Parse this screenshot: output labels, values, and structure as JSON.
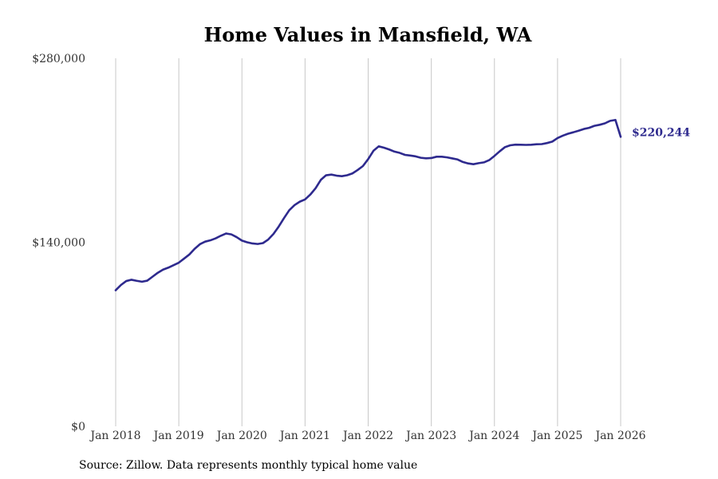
{
  "chart_data": {
    "type": "line",
    "title": "Home Values in Mansfield, WA",
    "source": "Source: Zillow. Data represents monthly typical home value",
    "xlabel": "",
    "ylabel": "",
    "ylim": [
      0,
      280000
    ],
    "y_ticks": [
      {
        "value": 0,
        "label": "$0"
      },
      {
        "value": 140000,
        "label": "$140,000"
      },
      {
        "value": 280000,
        "label": "$280,000"
      }
    ],
    "x_ticks": [
      {
        "month_index": 0,
        "label": "Jan 2018"
      },
      {
        "month_index": 12,
        "label": "Jan 2019"
      },
      {
        "month_index": 24,
        "label": "Jan 2020"
      },
      {
        "month_index": 36,
        "label": "Jan 2021"
      },
      {
        "month_index": 48,
        "label": "Jan 2022"
      },
      {
        "month_index": 60,
        "label": "Jan 2023"
      },
      {
        "month_index": 72,
        "label": "Jan 2024"
      },
      {
        "month_index": 84,
        "label": "Jan 2025"
      },
      {
        "month_index": 96,
        "label": "Jan 2026"
      }
    ],
    "grid": "vertical",
    "series": [
      {
        "name": "Typical home value",
        "color": "#2e2a8e",
        "start": "Jan 2018",
        "x": [
          0,
          1,
          2,
          3,
          4,
          5,
          6,
          7,
          8,
          9,
          10,
          11,
          12,
          13,
          14,
          15,
          16,
          17,
          18,
          19,
          20,
          21,
          22,
          23,
          24,
          25,
          26,
          27,
          28,
          29,
          30,
          31,
          32,
          33,
          34,
          35,
          36,
          37,
          38,
          39,
          40,
          41,
          42,
          43,
          44,
          45,
          46,
          47,
          48,
          49,
          50,
          51,
          52,
          53,
          54,
          55,
          56,
          57,
          58,
          59,
          60,
          61,
          62,
          63,
          64,
          65,
          66,
          67,
          68,
          69,
          70,
          71,
          72,
          73,
          74,
          75,
          76,
          77,
          78,
          79,
          80,
          81,
          82,
          83,
          84,
          85,
          86,
          87,
          88,
          89,
          90,
          91,
          92,
          93,
          94,
          95,
          96
        ],
        "values": [
          103500,
          107500,
          110500,
          111500,
          110700,
          110000,
          110800,
          113800,
          116800,
          119200,
          120700,
          122600,
          124500,
          127600,
          130700,
          135000,
          138500,
          140500,
          141500,
          143000,
          145000,
          146700,
          146000,
          143900,
          141300,
          140000,
          139100,
          138700,
          139400,
          142100,
          146400,
          152000,
          158400,
          164400,
          168300,
          170900,
          172600,
          176300,
          181100,
          187500,
          191000,
          191500,
          190700,
          190300,
          191000,
          192400,
          195000,
          198000,
          203300,
          209600,
          213000,
          212000,
          210600,
          209000,
          208000,
          206500,
          206000,
          205400,
          204300,
          203900,
          204100,
          205100,
          205100,
          204600,
          203800,
          203000,
          201100,
          200000,
          199400,
          200200,
          200800,
          202500,
          205700,
          209200,
          212400,
          213800,
          214300,
          214200,
          214100,
          214200,
          214600,
          214700,
          215500,
          216600,
          219300,
          221100,
          222600,
          223700,
          224900,
          226200,
          227100,
          228600,
          229400,
          230500,
          232400,
          233100,
          220244
        ],
        "end_label": "$220,244"
      }
    ]
  }
}
